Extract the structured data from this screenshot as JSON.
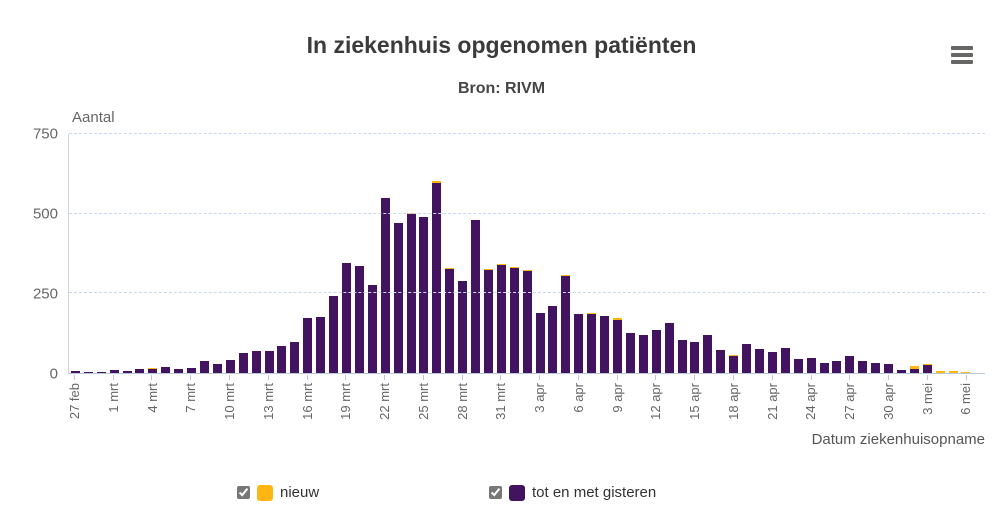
{
  "chart_data": {
    "type": "bar",
    "stacked": true,
    "title": "In ziekenhuis opgenomen patiënten",
    "subtitle": "Bron: RIVM",
    "ylabel": "Aantal",
    "xlabel": "Datum ziekenhuisopname",
    "ylim": [
      0,
      750
    ],
    "yticks": [
      0,
      250,
      500,
      750
    ],
    "grid": "horizontal-dashed",
    "legend_position": "bottom",
    "tick_every": 3,
    "categories": [
      "27 feb",
      "28 feb",
      "29 feb",
      "1 mrt",
      "2 mrt",
      "3 mrt",
      "4 mrt",
      "5 mrt",
      "6 mrt",
      "7 mrt",
      "8 mrt",
      "9 mrt",
      "10 mrt",
      "11 mrt",
      "12 mrt",
      "13 mrt",
      "14 mrt",
      "15 mrt",
      "16 mrt",
      "17 mrt",
      "18 mrt",
      "19 mrt",
      "20 mrt",
      "21 mrt",
      "22 mrt",
      "23 mrt",
      "24 mrt",
      "25 mrt",
      "26 mrt",
      "27 mrt",
      "28 mrt",
      "29 mrt",
      "30 mrt",
      "31 mrt",
      "1 apr",
      "2 apr",
      "3 apr",
      "4 apr",
      "5 apr",
      "6 apr",
      "7 apr",
      "8 apr",
      "9 apr",
      "10 apr",
      "11 apr",
      "12 apr",
      "13 apr",
      "14 apr",
      "15 apr",
      "16 apr",
      "17 apr",
      "18 apr",
      "19 apr",
      "20 apr",
      "21 apr",
      "22 apr",
      "23 apr",
      "24 apr",
      "25 apr",
      "26 apr",
      "27 apr",
      "28 apr",
      "29 apr",
      "30 apr",
      "1 mei",
      "2 mei",
      "3 mei",
      "4 mei",
      "5 mei",
      "6 mei",
      "7 mei"
    ],
    "series": [
      {
        "name": "nieuw",
        "color": "#ffb612",
        "values": [
          0,
          0,
          0,
          0,
          0,
          0,
          3,
          0,
          0,
          0,
          0,
          0,
          0,
          0,
          0,
          0,
          0,
          0,
          0,
          0,
          0,
          0,
          0,
          0,
          0,
          0,
          4,
          0,
          6,
          4,
          0,
          0,
          3,
          3,
          3,
          4,
          0,
          0,
          4,
          0,
          3,
          0,
          4,
          0,
          0,
          0,
          0,
          0,
          0,
          0,
          0,
          3,
          0,
          0,
          0,
          0,
          0,
          0,
          0,
          0,
          0,
          0,
          0,
          0,
          0,
          7,
          1,
          7,
          7,
          2,
          0
        ]
      },
      {
        "name": "tot en met gisteren",
        "color": "#42145f",
        "values": [
          5,
          2,
          4,
          10,
          6,
          13,
          11,
          19,
          11,
          16,
          36,
          29,
          40,
          64,
          70,
          68,
          84,
          98,
          172,
          175,
          242,
          345,
          333,
          274,
          548,
          468,
          497,
          486,
          595,
          324,
          288,
          478,
          322,
          339,
          328,
          319,
          189,
          210,
          302,
          184,
          184,
          179,
          167,
          124,
          120,
          133,
          156,
          104,
          98,
          119,
          73,
          54,
          90,
          74,
          67,
          78,
          45,
          47,
          30,
          36,
          54,
          38,
          32,
          29,
          10,
          14,
          26,
          0,
          0,
          0,
          0
        ]
      }
    ]
  },
  "legend": {
    "items": [
      {
        "label": "nieuw",
        "color": "#ffb612",
        "checked": true
      },
      {
        "label": "tot en met gisteren",
        "color": "#42145f",
        "checked": true
      }
    ]
  },
  "colors": {
    "grid": "#c9d8ec",
    "axis": "#b9c7dc",
    "axis_text": "#666666",
    "title_text": "#3b3b3b"
  }
}
